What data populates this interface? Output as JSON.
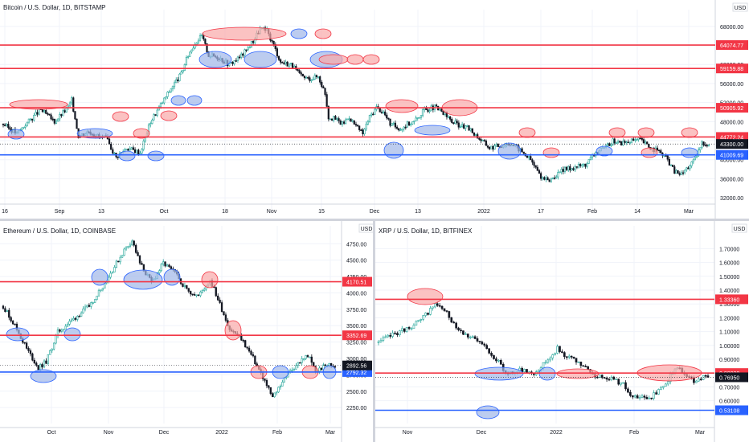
{
  "panels": [
    {
      "id": "btc",
      "title": "Bitcoin / U.S. Dollar, 1D, BITSTAMP",
      "unit": "USD",
      "y_range": [
        30500,
        70500
      ],
      "y_ticks": [
        "68000.00",
        "64000.00",
        "60000.00",
        "56000.00",
        "52000.00",
        "48000.00",
        "44000.00",
        "40000.00",
        "36000.00",
        "32000.00"
      ],
      "x_ticks": [
        "16",
        "Sep",
        "13",
        "Oct",
        "18",
        "Nov",
        "15",
        "Dec",
        "13",
        "2022",
        "17",
        "Feb",
        "14",
        "Mar"
      ],
      "current_price": "43300.00",
      "levels": [
        {
          "label": "64074.77",
          "value": 64074.77,
          "color": "#f23645"
        },
        {
          "label": "59159.88",
          "value": 59159.88,
          "color": "#f23645"
        },
        {
          "label": "50905.92",
          "value": 50905.92,
          "color": "#f23645"
        },
        {
          "label": "44772.24",
          "value": 44772.24,
          "color": "#f23645"
        },
        {
          "label": "41009.69",
          "value": 41009.69,
          "color": "#2962ff"
        }
      ],
      "bars": 205,
      "waypoints": [
        [
          0,
          47500
        ],
        [
          8,
          45500
        ],
        [
          14,
          47800
        ],
        [
          22,
          50500
        ],
        [
          30,
          48000
        ],
        [
          38,
          51000
        ],
        [
          40,
          52500
        ],
        [
          44,
          45000
        ],
        [
          50,
          46000
        ],
        [
          56,
          44800
        ],
        [
          60,
          44500
        ],
        [
          66,
          40500
        ],
        [
          72,
          42500
        ],
        [
          80,
          41500
        ],
        [
          86,
          48000
        ],
        [
          92,
          51500
        ],
        [
          98,
          55000
        ],
        [
          104,
          58000
        ],
        [
          108,
          62000
        ],
        [
          112,
          64500
        ],
        [
          116,
          66000
        ],
        [
          120,
          62000
        ],
        [
          126,
          61500
        ],
        [
          132,
          60000
        ],
        [
          138,
          61500
        ],
        [
          142,
          63000
        ],
        [
          146,
          65000
        ],
        [
          150,
          67500
        ],
        [
          154,
          67000
        ],
        [
          158,
          64000
        ],
        [
          162,
          60500
        ],
        [
          168,
          60000
        ],
        [
          174,
          57500
        ],
        [
          178,
          57000
        ],
        [
          184,
          57500
        ],
        [
          188,
          54000
        ],
        [
          190,
          49000
        ]
      ]
    },
    {
      "id": "eth",
      "title": "Ethereum / U.S. Dollar, 1D, COINBASE",
      "unit": "USD",
      "y_range": [
        2080,
        4950
      ],
      "y_ticks": [
        "4750.00",
        "4500.00",
        "4250.00",
        "4000.00",
        "3750.00",
        "3500.00",
        "3250.00",
        "3000.00",
        "2750.00",
        "2500.00",
        "2250.00"
      ],
      "x_ticks": [
        "Oct",
        "Nov",
        "Dec",
        "2022",
        "Feb",
        "Mar"
      ],
      "current_price": "2892.56",
      "levels": [
        {
          "label": "4170.51",
          "value": 4170.51,
          "color": "#f23645"
        },
        {
          "label": "3352.69",
          "value": 3352.69,
          "color": "#f23645"
        },
        {
          "label": "2792.32",
          "value": 2792.32,
          "color": "#2962ff"
        }
      ],
      "bars": 170,
      "waypoints": [
        [
          0,
          3800
        ],
        [
          6,
          3500
        ],
        [
          12,
          3150
        ],
        [
          18,
          2850
        ],
        [
          22,
          2950
        ],
        [
          28,
          3400
        ],
        [
          36,
          3600
        ],
        [
          44,
          3800
        ],
        [
          52,
          4150
        ],
        [
          58,
          4450
        ],
        [
          62,
          4650
        ],
        [
          66,
          4800
        ],
        [
          70,
          4450
        ],
        [
          76,
          4150
        ],
        [
          82,
          4450
        ],
        [
          88,
          4300
        ],
        [
          94,
          4050
        ],
        [
          100,
          3950
        ],
        [
          106,
          4200
        ],
        [
          110,
          3900
        ],
        [
          116,
          3450
        ],
        [
          122,
          3300
        ],
        [
          128,
          3000
        ],
        [
          134,
          2650
        ],
        [
          138,
          2400
        ],
        [
          144,
          2700
        ],
        [
          150,
          2900
        ],
        [
          156,
          3050
        ],
        [
          160,
          2800
        ],
        [
          166,
          2900
        ],
        [
          170,
          2890
        ]
      ]
    },
    {
      "id": "xrp",
      "title": "XRP / U.S. Dollar, 1D, BITFINEX",
      "unit": "USD",
      "y_range": [
        0.47,
        1.83
      ],
      "y_ticks": [
        "1.70000",
        "1.60000",
        "1.50000",
        "1.40000",
        "1.30000",
        "1.20000",
        "1.10000",
        "1.00000",
        "0.90000",
        "0.80000",
        "0.70000",
        "0.60000"
      ],
      "x_ticks": [
        "Nov",
        "Dec",
        "2022",
        "Feb",
        "Mar"
      ],
      "current_price": "0.76950",
      "levels": [
        {
          "label": "1.33360",
          "value": 1.3336,
          "color": "#f23645"
        },
        {
          "label": "0.80030",
          "value": 0.8003,
          "color": "#f23645"
        },
        {
          "label": "0.53108",
          "value": 0.53108,
          "color": "#2962ff"
        }
      ],
      "bars": 140,
      "waypoints": [
        [
          0,
          1.02
        ],
        [
          6,
          1.08
        ],
        [
          12,
          1.12
        ],
        [
          18,
          1.18
        ],
        [
          24,
          1.3
        ],
        [
          28,
          1.25
        ],
        [
          34,
          1.12
        ],
        [
          40,
          1.05
        ],
        [
          46,
          0.98
        ],
        [
          50,
          0.9
        ],
        [
          54,
          0.8
        ],
        [
          60,
          0.82
        ],
        [
          66,
          0.8
        ],
        [
          72,
          0.9
        ],
        [
          76,
          0.98
        ],
        [
          80,
          0.92
        ],
        [
          86,
          0.86
        ],
        [
          92,
          0.78
        ],
        [
          98,
          0.77
        ],
        [
          104,
          0.72
        ],
        [
          108,
          0.62
        ],
        [
          114,
          0.62
        ],
        [
          118,
          0.65
        ],
        [
          122,
          0.72
        ],
        [
          126,
          0.84
        ],
        [
          130,
          0.8
        ],
        [
          134,
          0.74
        ],
        [
          138,
          0.77
        ],
        [
          140,
          0.77
        ]
      ]
    }
  ],
  "colors": {
    "up": "#26a69a",
    "down": "#131722",
    "red": "#f23645",
    "blue": "#2962ff",
    "fill_red": "#f9a8a8",
    "fill_blue": "#9fb7e8"
  }
}
